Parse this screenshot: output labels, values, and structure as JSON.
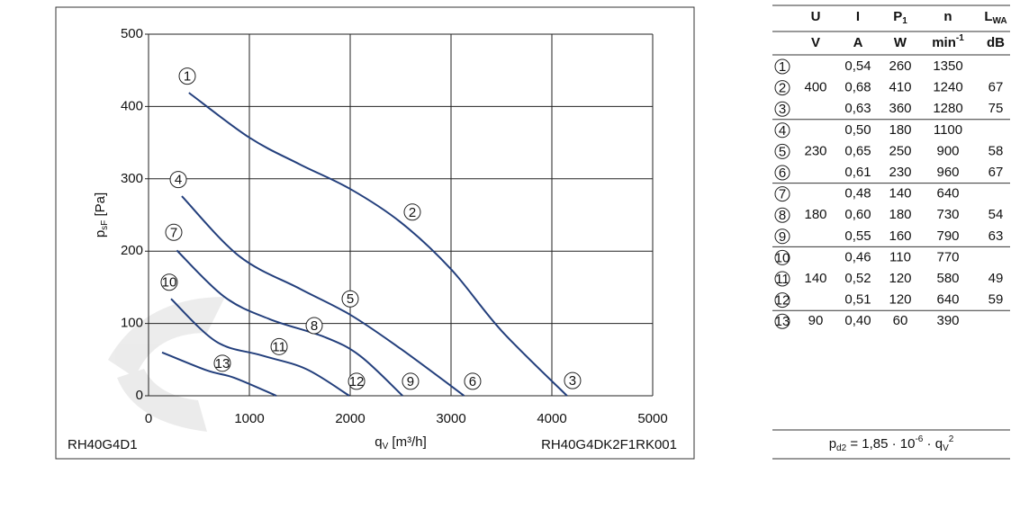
{
  "chart_data": {
    "type": "line",
    "xlabel": {
      "text": "q",
      "sub": "V",
      "rest": " [m³/h]"
    },
    "ylabel": {
      "text": "p",
      "sub": "sF",
      "rest": " [Pa]"
    },
    "xlim": [
      0,
      5000
    ],
    "ylim": [
      0,
      500
    ],
    "xticks": [
      0,
      1000,
      2000,
      3000,
      4000,
      5000
    ],
    "yticks": [
      0,
      100,
      200,
      300,
      400,
      500
    ],
    "grid": true,
    "series": [
      {
        "color": "#233f7c",
        "x": [
          400,
          1000,
          1500,
          2000,
          2500,
          3000,
          3500,
          4150
        ],
        "values": [
          419,
          357,
          320,
          286,
          240,
          175,
          90,
          0
        ]
      },
      {
        "color": "#233f7c",
        "x": [
          330,
          900,
          1500,
          2000,
          2500,
          3130
        ],
        "values": [
          276,
          193,
          148,
          112,
          65,
          0
        ]
      },
      {
        "color": "#233f7c",
        "x": [
          280,
          750,
          1200,
          1750,
          2100,
          2520
        ],
        "values": [
          201,
          137,
          106,
          81,
          55,
          0
        ]
      },
      {
        "color": "#233f7c",
        "x": [
          223,
          670,
          1116,
          1563,
          1991
        ],
        "values": [
          134,
          75,
          56,
          37,
          0
        ]
      },
      {
        "color": "#233f7c",
        "x": [
          134,
          580,
          848,
          1268
        ],
        "values": [
          60,
          35,
          25,
          0
        ]
      }
    ],
    "annotations": [
      {
        "text": "1",
        "x": 384,
        "y": 442
      },
      {
        "text": "2",
        "x": 2616,
        "y": 254
      },
      {
        "text": "3",
        "x": 4205,
        "y": 21
      },
      {
        "text": "4",
        "x": 295,
        "y": 299
      },
      {
        "text": "5",
        "x": 2000,
        "y": 134
      },
      {
        "text": "6",
        "x": 3214,
        "y": 20
      },
      {
        "text": "7",
        "x": 250,
        "y": 226
      },
      {
        "text": "8",
        "x": 1643,
        "y": 97
      },
      {
        "text": "9",
        "x": 2598,
        "y": 20
      },
      {
        "text": "10",
        "x": 205,
        "y": 157
      },
      {
        "text": "11",
        "x": 1295,
        "y": 68
      },
      {
        "text": "12",
        "x": 2063,
        "y": 20
      },
      {
        "text": "13",
        "x": 732,
        "y": 45
      }
    ],
    "footer_left": "RH40G4D1",
    "footer_right": "RH40G4DK2F1RK001"
  },
  "table": {
    "header": [
      {
        "text": "U"
      },
      {
        "text": "I"
      },
      {
        "text": "P",
        "sub": "1"
      },
      {
        "text": "n"
      },
      {
        "text": "L",
        "sub": "WA"
      }
    ],
    "units": [
      {
        "text": "V"
      },
      {
        "text": "A"
      },
      {
        "text": "W"
      },
      {
        "text": "min",
        "sup": "-1"
      },
      {
        "text": "dB"
      }
    ],
    "rows": [
      [
        "1",
        null,
        "0,54",
        "260",
        "1350",
        null
      ],
      [
        "2",
        "400",
        "0,68",
        "410",
        "1240",
        "67"
      ],
      [
        "3",
        null,
        "0,63",
        "360",
        "1280",
        "75"
      ],
      [
        "4",
        null,
        "0,50",
        "180",
        "1100",
        null
      ],
      [
        "5",
        "230",
        "0,65",
        "250",
        "900",
        "58"
      ],
      [
        "6",
        null,
        "0,61",
        "230",
        "960",
        "67"
      ],
      [
        "7",
        null,
        "0,48",
        "140",
        "640",
        null
      ],
      [
        "8",
        "180",
        "0,60",
        "180",
        "730",
        "54"
      ],
      [
        "9",
        null,
        "0,55",
        "160",
        "790",
        "63"
      ],
      [
        "10",
        null,
        "0,46",
        "110",
        "770",
        null
      ],
      [
        "11",
        "140",
        "0,52",
        "120",
        "580",
        "49"
      ],
      [
        "12",
        null,
        "0,51",
        "120",
        "640",
        "59"
      ],
      [
        "13",
        "90",
        "0,40",
        "60",
        "390",
        null
      ]
    ],
    "formula": [
      {
        "text": "p",
        "sub": "d2"
      },
      {
        "text": " = 1,85 · 10",
        "sup": "-6"
      },
      {
        "text": " · q",
        "sub": "V"
      },
      {
        "text": "",
        "sup": "2"
      }
    ]
  }
}
